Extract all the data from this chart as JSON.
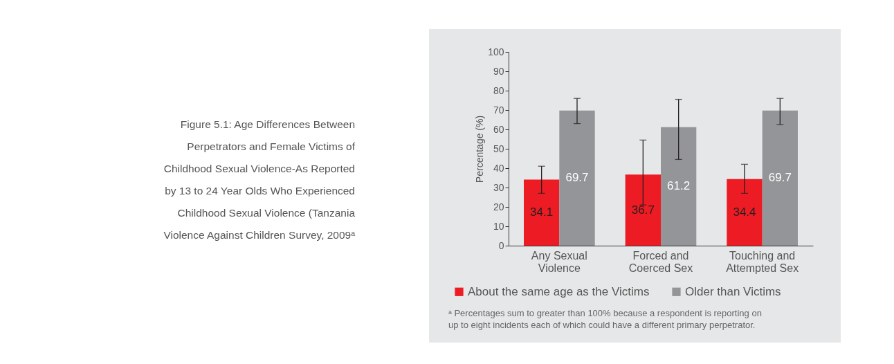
{
  "chart_data": {
    "type": "bar",
    "title": "Figure 5.1: Age Differences Between\nPerpetrators and Female Victims of\nChildhood Sexual Violence-As Reported\nby 13 to 24 Year Olds Who Experienced\nChildhood Sexual Violence (Tanzania\nViolence Against Children Survey, 2009ᵃ",
    "ylabel": "Percentage (%)",
    "categories": [
      "Any Sexual\nViolence",
      "Forced and\nCoerced Sex",
      "Touching and\nAttempted Sex"
    ],
    "series": [
      {
        "name": "About the same age as the Victims",
        "color": "#ed1c24",
        "values": [
          34.1,
          36.7,
          34.4
        ],
        "errors": [
          [
            27,
            41
          ],
          [
            21,
            54.5
          ],
          [
            27,
            42
          ]
        ]
      },
      {
        "name": "Older than Victims",
        "color": "#939598",
        "values": [
          69.7,
          61.2,
          69.7
        ],
        "errors": [
          [
            63,
            76
          ],
          [
            44.5,
            75.5
          ],
          [
            62.5,
            76
          ]
        ]
      }
    ],
    "ylim": [
      0,
      100
    ],
    "yticks": [
      0,
      10,
      20,
      30,
      40,
      50,
      60,
      70,
      80,
      90,
      100
    ],
    "data_labels": true,
    "grid": false,
    "legend": "bottom",
    "annotations": [
      "ᵃ Percentages sum to greater than 100% because a respondent is reporting on\nup to eight incidents each of which could have a different primary perpetrator."
    ]
  }
}
